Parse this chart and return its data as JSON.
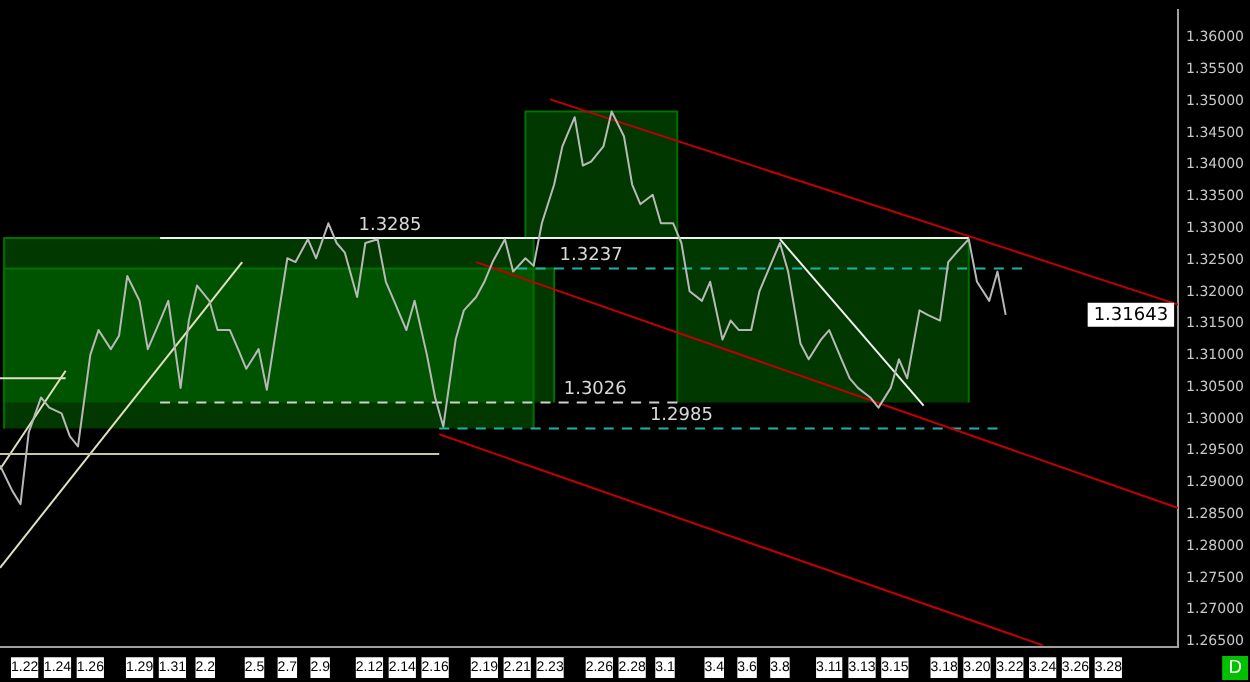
{
  "chart_data": {
    "type": "line",
    "xlim": [
      "--01-20T12:00",
      "--04-01T06:00"
    ],
    "xticks": [
      {
        "value": "--01-22",
        "label": "1.22"
      },
      {
        "value": "--01-24",
        "label": "1.24"
      },
      {
        "value": "--01-26",
        "label": "1.26"
      },
      {
        "value": "--01-29",
        "label": "1.29"
      },
      {
        "value": "--01-31",
        "label": "1.31"
      },
      {
        "value": "--02-02",
        "label": "2.2"
      },
      {
        "value": "--02-05",
        "label": "2.5"
      },
      {
        "value": "--02-07",
        "label": "2.7"
      },
      {
        "value": "--02-09",
        "label": "2.9"
      },
      {
        "value": "--02-12",
        "label": "2.12"
      },
      {
        "value": "--02-14",
        "label": "2.14"
      },
      {
        "value": "--02-16",
        "label": "2.16"
      },
      {
        "value": "--02-19",
        "label": "2.19"
      },
      {
        "value": "--02-21",
        "label": "2.21"
      },
      {
        "value": "--02-23",
        "label": "2.23"
      },
      {
        "value": "--02-26",
        "label": "2.26"
      },
      {
        "value": "--02-28",
        "label": "2.28"
      },
      {
        "value": "--03-01",
        "label": "3.1"
      },
      {
        "value": "--03-04",
        "label": "3.4"
      },
      {
        "value": "--03-06",
        "label": "3.6"
      },
      {
        "value": "--03-08",
        "label": "3.8"
      },
      {
        "value": "--03-11",
        "label": "3.11"
      },
      {
        "value": "--03-13",
        "label": "3.13"
      },
      {
        "value": "--03-15",
        "label": "3.15"
      },
      {
        "value": "--03-18",
        "label": "3.18"
      },
      {
        "value": "--03-20",
        "label": "3.20"
      },
      {
        "value": "--03-22",
        "label": "3.22"
      },
      {
        "value": "--03-24",
        "label": "3.24"
      },
      {
        "value": "--03-26",
        "label": "3.26"
      },
      {
        "value": "--03-28",
        "label": "3.28"
      }
    ],
    "ylim": [
      1.2641,
      1.3643
    ],
    "yticks": [
      {
        "value": 1.265,
        "label": "1.26500"
      },
      {
        "value": 1.27,
        "label": "1.27000"
      },
      {
        "value": 1.275,
        "label": "1.27500"
      },
      {
        "value": 1.28,
        "label": "1.28000"
      },
      {
        "value": 1.285,
        "label": "1.28500"
      },
      {
        "value": 1.29,
        "label": "1.29000"
      },
      {
        "value": 1.295,
        "label": "1.29500"
      },
      {
        "value": 1.3,
        "label": "1.30000"
      },
      {
        "value": 1.305,
        "label": "1.30500"
      },
      {
        "value": 1.31,
        "label": "1.31000"
      },
      {
        "value": 1.315,
        "label": "1.31500"
      },
      {
        "value": 1.32,
        "label": "1.32000"
      },
      {
        "value": 1.325,
        "label": "1.32500"
      },
      {
        "value": 1.33,
        "label": "1.33000"
      },
      {
        "value": 1.335,
        "label": "1.33500"
      },
      {
        "value": 1.34,
        "label": "1.34000"
      },
      {
        "value": 1.345,
        "label": "1.34500"
      },
      {
        "value": 1.35,
        "label": "1.35000"
      },
      {
        "value": 1.355,
        "label": "1.35500"
      },
      {
        "value": 1.36,
        "label": "1.36000"
      }
    ],
    "series": [
      {
        "type": "area",
        "color": "#007000",
        "x": [
          "--01-20T18:00",
          "--01-20T18:00",
          "--02-22",
          "--02-22"
        ],
        "values": [
          1.2985,
          1.3285,
          1.3285,
          1.2985
        ]
      },
      {
        "type": "area",
        "color": "#007000",
        "x": [
          "--01-20T18:00",
          "--01-20T18:00",
          "--02-23T06:00",
          "--02-23T06:00"
        ],
        "values": [
          1.3026,
          1.3237,
          1.3237,
          1.3026
        ]
      },
      {
        "type": "area",
        "color": "#007000",
        "x": [
          "--02-21T12:00",
          "--02-21T12:00",
          "--03-01T18:00",
          "--03-01T18:00"
        ],
        "values": [
          1.3285,
          1.3484,
          1.3484,
          1.3285
        ]
      },
      {
        "type": "area",
        "color": "#007000",
        "x": [
          "--03-01T18:00",
          "--03-01T18:00",
          "--03-19T12:00",
          "--03-19T12:00"
        ],
        "values": [
          1.3026,
          1.3285,
          1.3285,
          1.3026
        ]
      },
      {
        "type": "line",
        "color": "#f0f0f0",
        "line_style": "solid",
        "x": [
          "--01-30T06:00",
          "--03-19T12:00"
        ],
        "values": [
          1.3285,
          1.3285
        ]
      },
      {
        "type": "line",
        "color": "#20b2aa",
        "line_style": "dashed",
        "x": [
          "--02-21",
          "--03-22T18:00"
        ],
        "values": [
          1.3237,
          1.3237
        ]
      },
      {
        "type": "line",
        "color": "#d0d0d0",
        "line_style": "dashed",
        "x": [
          "--01-30T06:00",
          "--03-01T18:00"
        ],
        "values": [
          1.3026,
          1.3026
        ]
      },
      {
        "type": "line",
        "color": "#20b2aa",
        "line_style": "dashed",
        "x": [
          "--02-16T06:00",
          "--03-21T06:00"
        ],
        "values": [
          1.2985,
          1.2985
        ]
      },
      {
        "type": "line",
        "color": "#c00000",
        "line_style": "solid",
        "x": [
          "--02-23",
          "--04-01T06:00"
        ],
        "values": [
          1.3503,
          1.318
        ]
      },
      {
        "type": "line",
        "color": "#c00000",
        "line_style": "solid",
        "x": [
          "--02-18T12:00",
          "--04-01T06:00"
        ],
        "values": [
          1.3247,
          1.286
        ]
      },
      {
        "type": "line",
        "color": "#c00000",
        "line_style": "solid",
        "x": [
          "--02-16T06:00",
          "--03-24"
        ],
        "values": [
          1.2976,
          1.2644
        ]
      },
      {
        "type": "line",
        "color": "#e0e0c0",
        "line_style": "solid",
        "x": [
          "--01-20T12:00",
          "--02-04T06:00"
        ],
        "values": [
          1.2766,
          1.3247
        ]
      },
      {
        "type": "line",
        "color": "#e0e0c0",
        "line_style": "solid",
        "x": [
          "--01-20T12:00",
          "--01-24T12:00"
        ],
        "values": [
          1.2921,
          1.3076
        ]
      },
      {
        "type": "line",
        "color": "#e0e0c0",
        "line_style": "solid",
        "x": [
          "--01-20T12:00",
          "--01-24T12:00"
        ],
        "values": [
          1.3064,
          1.3064
        ]
      },
      {
        "type": "line",
        "color": "#c8c8a0",
        "line_style": "solid",
        "x": [
          "--01-20T12:00",
          "--02-16T06:00"
        ],
        "values": [
          1.2945,
          1.2945
        ]
      },
      {
        "type": "line",
        "color": "#f0f0f0",
        "line_style": "solid",
        "x": [
          "--03-08",
          "--03-16T18:00"
        ],
        "values": [
          1.3283,
          1.3021
        ]
      },
      {
        "color": "#b8b8b8",
        "line_style": "solid",
        "x": [
          "--01-20T12:00",
          "--01-21T06:00",
          "--01-21T18:00",
          "--01-22T06:00",
          "--01-23T00:00",
          "--01-23T12:00",
          "--01-24T06:00",
          "--01-24T18:00",
          "--01-25T06:00",
          "--01-26T00:00",
          "--01-26T12:00",
          "--01-27T06:00",
          "--01-27T18:00",
          "--01-28T06:00",
          "--01-29T00:00",
          "--01-29T12:00",
          "--01-30T06:00",
          "--01-30T18:00",
          "--01-31T12:00",
          "--02-01T00:00",
          "--02-01T12:00",
          "--02-02T06:00",
          "--02-02T18:00",
          "--02-03T12:00",
          "--02-04T00:00",
          "--02-04T12:00",
          "--02-05T06:00",
          "--02-05T18:00",
          "--02-06T12:00",
          "--02-07T00:00",
          "--02-07T12:00",
          "--02-08T06:00",
          "--02-08T18:00",
          "--02-09T12:00",
          "--02-10T00:00",
          "--02-10T12:00",
          "--02-11T06:00",
          "--02-11T18:00",
          "--02-12T12:00",
          "--02-13T00:00",
          "--02-13T12:00",
          "--02-14T06:00",
          "--02-14T18:00",
          "--02-15T12:00",
          "--02-16T00:00",
          "--02-16T12:00",
          "--02-17T06:00",
          "--02-17T18:00",
          "--02-18T12:00",
          "--02-19T00:00",
          "--02-19T12:00",
          "--02-20T06:00",
          "--02-20T18:00",
          "--02-21T12:00",
          "--02-22T00:00",
          "--02-22T12:00",
          "--02-23T06:00",
          "--02-23T18:00",
          "--02-24T12:00",
          "--02-25T00:00",
          "--02-25T12:00",
          "--02-26T06:00",
          "--02-26T18:00",
          "--02-27T12:00",
          "--02-28T00:00",
          "--02-28T12:00",
          "--02-29T06:00",
          "--02-29T18:00",
          "--03-01T12:00",
          "--03-02T00:00",
          "--03-02T12:00",
          "--03-03T06:00",
          "--03-03T18:00",
          "--03-04T12:00",
          "--03-05T00:00",
          "--03-05T12:00",
          "--03-06T06:00",
          "--03-06T18:00",
          "--03-07T12:00",
          "--03-08T00:00",
          "--03-08T12:00",
          "--03-09T06:00",
          "--03-09T18:00",
          "--03-10T12:00",
          "--03-11T00:00",
          "--03-11T18:00",
          "--03-12T06:00",
          "--03-12T18:00",
          "--03-13T12:00",
          "--03-14T00:00",
          "--03-14T18:00",
          "--03-15T06:00",
          "--03-15T18:00",
          "--03-16T12:00",
          "--03-17T00:00",
          "--03-17T18:00",
          "--03-18T06:00",
          "--03-18T18:00",
          "--03-19T12:00",
          "--03-20T00:00",
          "--03-20T18:00",
          "--03-21T06:00",
          "--03-21T18:00"
        ],
        "values": [
          1.2927,
          1.2887,
          1.2866,
          1.2979,
          1.3034,
          1.3018,
          1.3009,
          1.2973,
          1.2957,
          1.3101,
          1.314,
          1.311,
          1.3131,
          1.3225,
          1.3186,
          1.311,
          1.3155,
          1.3186,
          1.3049,
          1.3155,
          1.321,
          1.3186,
          1.314,
          1.314,
          1.311,
          1.3079,
          1.311,
          1.3046,
          1.3171,
          1.3253,
          1.3247,
          1.3283,
          1.3253,
          1.3308,
          1.3277,
          1.3262,
          1.3192,
          1.3277,
          1.3283,
          1.3216,
          1.3186,
          1.314,
          1.3186,
          1.3101,
          1.3034,
          1.2988,
          1.3125,
          1.3171,
          1.3192,
          1.3216,
          1.3247,
          1.3283,
          1.3232,
          1.3253,
          1.3241,
          1.3308,
          1.3369,
          1.3429,
          1.3475,
          1.3399,
          1.3405,
          1.3429,
          1.3484,
          1.3445,
          1.3369,
          1.3338,
          1.3353,
          1.3308,
          1.3308,
          1.3277,
          1.3201,
          1.3186,
          1.3216,
          1.3125,
          1.3155,
          1.314,
          1.314,
          1.3201,
          1.3247,
          1.3277,
          1.3232,
          1.3119,
          1.3094,
          1.3125,
          1.314,
          1.3094,
          1.3064,
          1.3049,
          1.3034,
          1.3018,
          1.3049,
          1.3094,
          1.3064,
          1.3171,
          1.3164,
          1.3155,
          1.3247,
          1.3262,
          1.3283,
          1.3216,
          1.3186,
          1.3232,
          1.3164
        ]
      }
    ],
    "annotations": [
      {
        "text": "1.3285",
        "x": "--02-13T06:00",
        "y": 1.3285
      },
      {
        "text": "1.3237",
        "x": "--02-25T12:00",
        "y": 1.3237
      },
      {
        "text": "1.3026",
        "x": "--02-25T18:00",
        "y": 1.3026
      },
      {
        "text": "1.2985",
        "x": "--03-02",
        "y": 1.2985
      },
      "1.31643",
      "D"
    ]
  }
}
